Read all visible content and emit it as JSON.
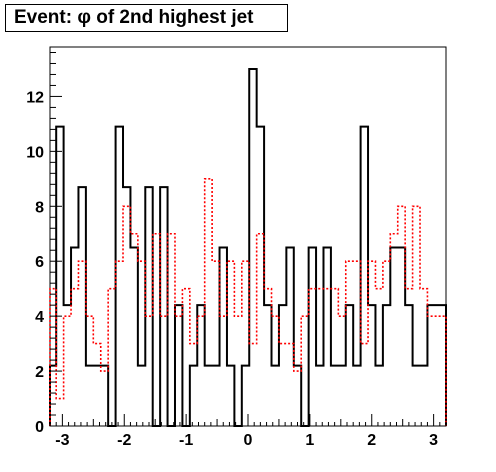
{
  "chart_data": {
    "type": "histogram",
    "title": "Event: φ of 2nd highest jet",
    "xlabel": "",
    "ylabel": "",
    "xlim": [
      -3.2,
      3.2
    ],
    "ylim": [
      0,
      13.8
    ],
    "grid": false,
    "legend": "none",
    "x_ticks": [
      -3,
      -2,
      -1,
      0,
      1,
      2,
      3
    ],
    "x_tick_labels": [
      "-3",
      "-2",
      "-1",
      "0",
      "1",
      "2",
      "3"
    ],
    "y_ticks": [
      0,
      2,
      4,
      6,
      8,
      10,
      12
    ],
    "y_tick_labels": [
      "0",
      "2",
      "4",
      "6",
      "8",
      "10",
      "12"
    ],
    "bin_edges": [
      -3.2,
      -3.1,
      -2.98,
      -2.86,
      -2.74,
      -2.62,
      -2.5,
      -2.38,
      -2.26,
      -2.14,
      -2.02,
      -1.9,
      -1.78,
      -1.66,
      -1.54,
      -1.42,
      -1.3,
      -1.18,
      -1.06,
      -0.94,
      -0.82,
      -0.7,
      -0.58,
      -0.46,
      -0.34,
      -0.22,
      -0.1,
      0.02,
      0.14,
      0.26,
      0.38,
      0.5,
      0.62,
      0.74,
      0.86,
      0.98,
      1.1,
      1.22,
      1.34,
      1.46,
      1.58,
      1.7,
      1.82,
      1.94,
      2.06,
      2.18,
      2.3,
      2.42,
      2.54,
      2.66,
      2.78,
      2.9,
      3.02,
      3.2
    ],
    "series": [
      {
        "color": "#000000",
        "style": "solid",
        "values": [
          2.2,
          10.9,
          4.4,
          6.5,
          8.7,
          2.2,
          2.2,
          2.2,
          0,
          10.9,
          8.7,
          6.5,
          2.2,
          8.7,
          0,
          8.7,
          0,
          4.4,
          0,
          2.2,
          4.4,
          2.2,
          2.2,
          6.5,
          2.2,
          0,
          2.2,
          13,
          10.9,
          4.4,
          2.2,
          4.4,
          6.5,
          2.2,
          0,
          6.5,
          2.2,
          6.5,
          2.2,
          2.2,
          4.4,
          2.2,
          10.9,
          4.4,
          2.2,
          4.4,
          6.5,
          6.5,
          4.4,
          2.2,
          2.2,
          4.4,
          4.4
        ]
      },
      {
        "color": "#ff0000",
        "style": "dotted",
        "values": [
          5,
          1,
          4,
          5,
          6,
          4,
          3,
          2,
          5,
          6,
          8,
          7,
          6,
          4,
          7,
          4,
          7,
          4,
          5,
          3,
          4,
          9,
          6,
          4,
          6,
          4,
          6,
          3,
          7,
          5,
          4,
          3,
          3,
          2,
          4,
          5,
          5,
          5,
          5,
          4,
          6,
          6,
          3,
          6,
          5,
          6,
          7,
          8,
          5,
          8,
          5,
          4,
          4
        ]
      }
    ]
  }
}
